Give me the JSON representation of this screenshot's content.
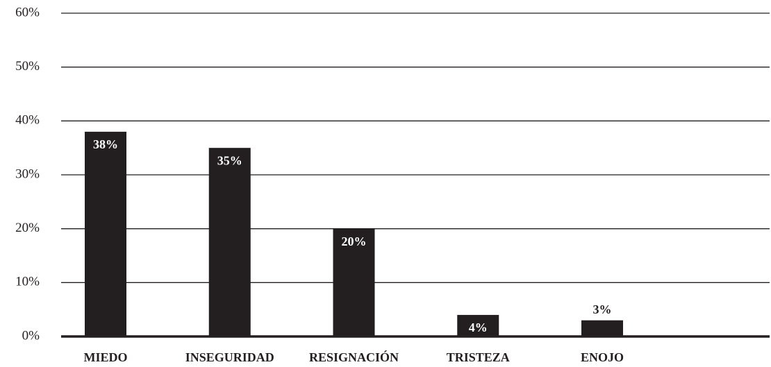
{
  "chart_data": {
    "type": "bar",
    "categories": [
      "MIEDO",
      "INSEGURIDAD",
      "RESIGNACIÓN",
      "TRISTEZA",
      "ENOJO"
    ],
    "values": [
      38,
      35,
      20,
      4,
      3
    ],
    "value_labels": [
      "38%",
      "35%",
      "20%",
      "4%",
      "3%"
    ],
    "color": "#231f20",
    "ylim": [
      0,
      60
    ],
    "yticks": [
      {
        "value": 0,
        "label": "0%"
      },
      {
        "value": 10,
        "label": "10%"
      },
      {
        "value": 20,
        "label": "20%"
      },
      {
        "value": 30,
        "label": "30%"
      },
      {
        "value": 40,
        "label": "40%"
      },
      {
        "value": 50,
        "label": "50%"
      },
      {
        "value": 60,
        "label": "60%"
      }
    ],
    "grid": true
  }
}
